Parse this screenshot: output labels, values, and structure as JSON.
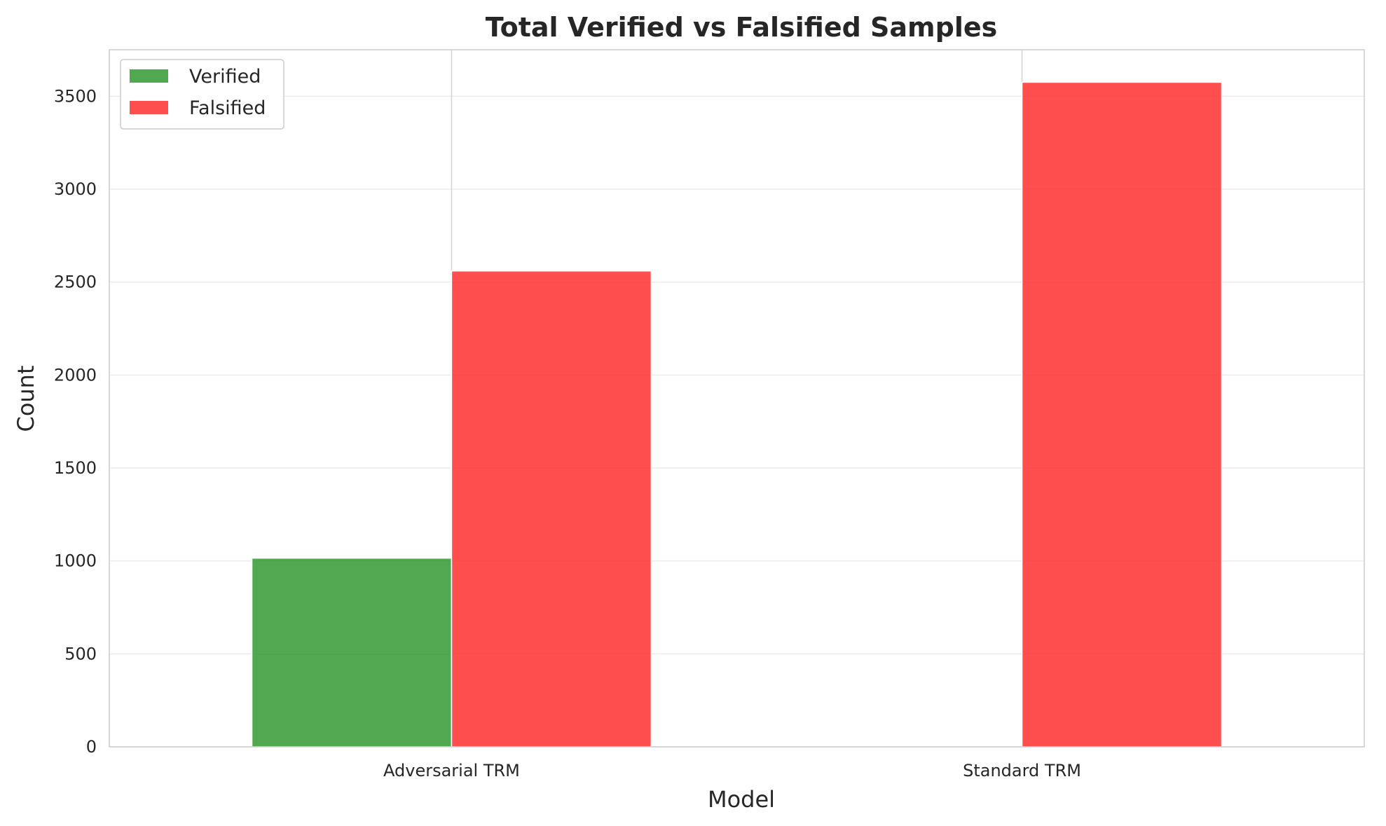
{
  "chart_data": {
    "type": "bar",
    "title": "Total Verified vs Falsified Samples",
    "xlabel": "Model",
    "ylabel": "Count",
    "categories": [
      "Adversarial TRM",
      "Standard TRM"
    ],
    "series": [
      {
        "name": "Verified",
        "values": [
          1015,
          0
        ],
        "color": "#2e962e"
      },
      {
        "name": "Falsified",
        "values": [
          2560,
          3575
        ],
        "color": "#ff2a2a"
      }
    ],
    "ylim": [
      0,
      3750
    ],
    "yticks": [
      0,
      500,
      1000,
      1500,
      2000,
      2500,
      3000,
      3500
    ],
    "grid": true,
    "legend_position": "top-left"
  }
}
